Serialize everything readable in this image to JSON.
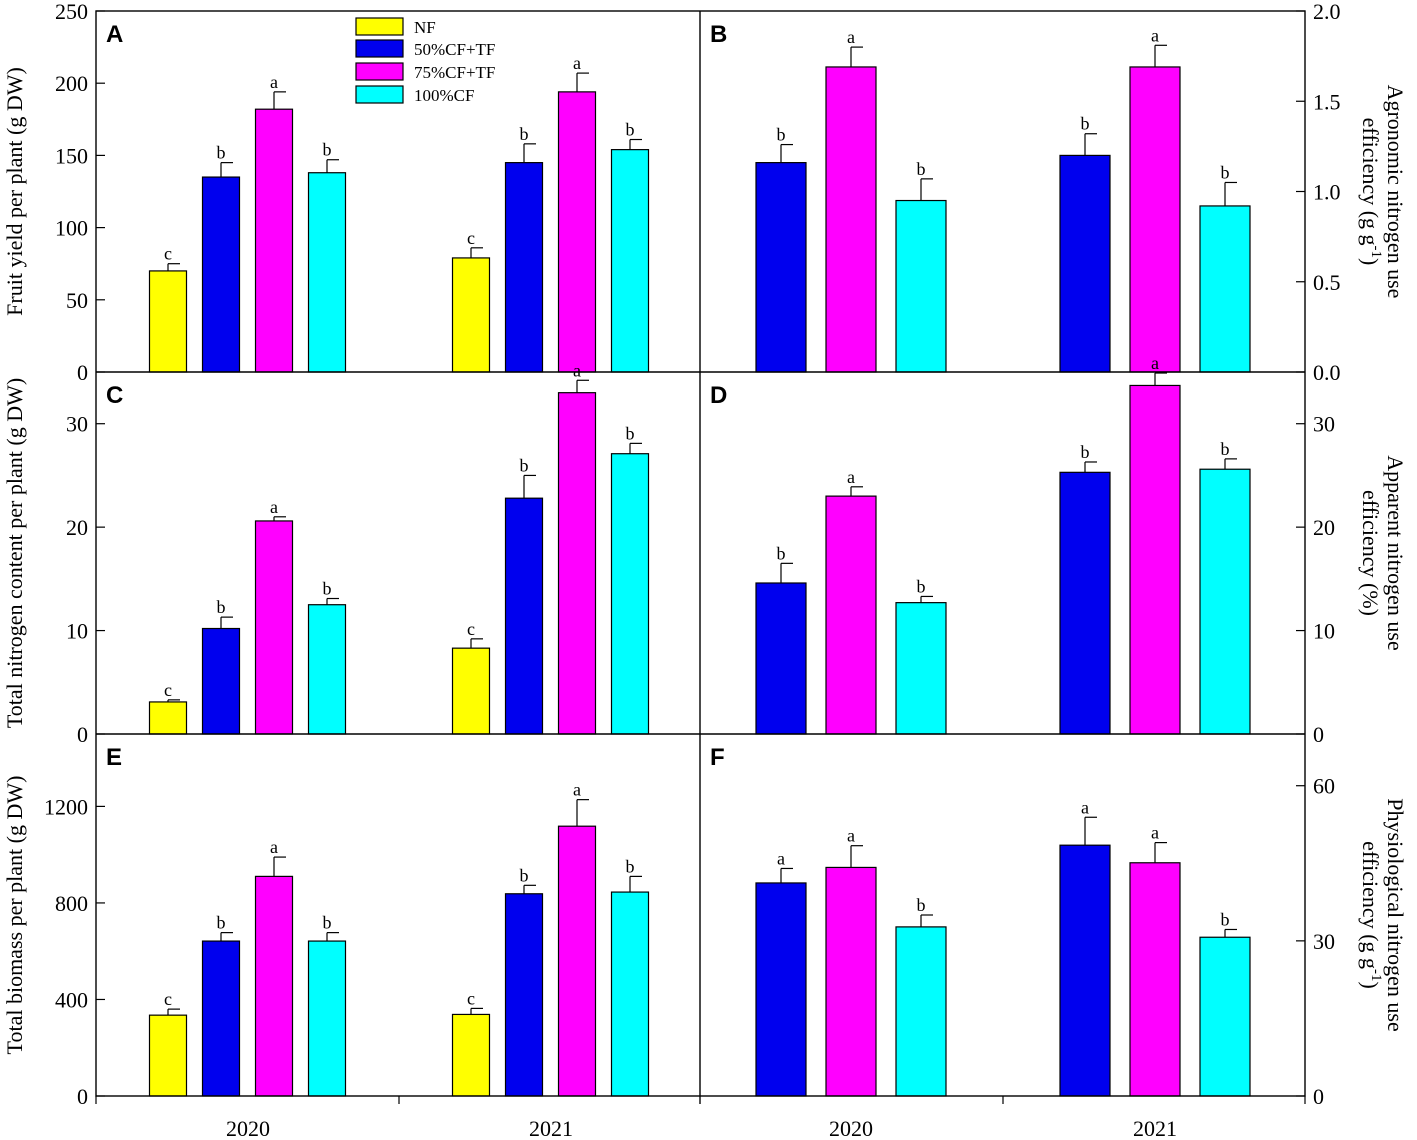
{
  "treatments": [
    "NF",
    "50%CF+TF",
    "75%CF+TF",
    "100%CF"
  ],
  "colors": {
    "NF": "#ffff00",
    "50%CF+TF": "#0000ee",
    "75%CF+TF": "#ff00ff",
    "100%CF": "#00ffff"
  },
  "years": [
    "2020",
    "2021"
  ],
  "chart_data": [
    {
      "panel": "A",
      "type": "bar",
      "ylabel": "Fruit yield per plant (g DW)",
      "ylabel_side": "left",
      "ylim": [
        0,
        250
      ],
      "yticks": [
        0,
        50,
        100,
        150,
        200,
        250
      ],
      "ytick_labels": [
        "0",
        "50",
        "100",
        "150",
        "200",
        "250"
      ],
      "categories": [
        "2020",
        "2021"
      ],
      "series": [
        {
          "name": "NF",
          "values": [
            70,
            79
          ],
          "errors": [
            5,
            7
          ],
          "labels": [
            "c",
            "c"
          ]
        },
        {
          "name": "50%CF+TF",
          "values": [
            135,
            145
          ],
          "errors": [
            10,
            13
          ],
          "labels": [
            "b",
            "b"
          ]
        },
        {
          "name": "75%CF+TF",
          "values": [
            182,
            194
          ],
          "errors": [
            12,
            13
          ],
          "labels": [
            "a",
            "a"
          ]
        },
        {
          "name": "100%CF",
          "values": [
            138,
            154
          ],
          "errors": [
            9,
            7
          ],
          "labels": [
            "b",
            "b"
          ]
        }
      ]
    },
    {
      "panel": "B",
      "type": "bar",
      "ylabel": "Agronomic nitrogen use",
      "ylabel2": "efficiency (g g-1)",
      "ylabel_side": "right",
      "ylim": [
        0,
        2.0
      ],
      "yticks": [
        0,
        0.5,
        1.0,
        1.5,
        2.0
      ],
      "ytick_labels": [
        "0.0",
        "0.5",
        "1.0",
        "1.5",
        "2.0"
      ],
      "categories": [
        "2020",
        "2021"
      ],
      "series": [
        {
          "name": "50%CF+TF",
          "values": [
            1.16,
            1.2
          ],
          "errors": [
            0.1,
            0.12
          ],
          "labels": [
            "b",
            "b"
          ]
        },
        {
          "name": "75%CF+TF",
          "values": [
            1.69,
            1.69
          ],
          "errors": [
            0.11,
            0.12
          ],
          "labels": [
            "a",
            "a"
          ]
        },
        {
          "name": "100%CF",
          "values": [
            0.95,
            0.92
          ],
          "errors": [
            0.12,
            0.13
          ],
          "labels": [
            "b",
            "b"
          ]
        }
      ]
    },
    {
      "panel": "C",
      "type": "bar",
      "ylabel": "Total nitrogen content per plant (g DW)",
      "ylabel_side": "left",
      "ylim": [
        0,
        35
      ],
      "yticks": [
        0,
        10,
        20,
        30
      ],
      "ytick_labels": [
        "0",
        "10",
        "20",
        "30"
      ],
      "categories": [
        "2020",
        "2021"
      ],
      "series": [
        {
          "name": "NF",
          "values": [
            3.1,
            8.3
          ],
          "errors": [
            0.2,
            0.9
          ],
          "labels": [
            "c",
            "c"
          ]
        },
        {
          "name": "50%CF+TF",
          "values": [
            10.2,
            22.8
          ],
          "errors": [
            1.1,
            2.2
          ],
          "labels": [
            "b",
            "b"
          ]
        },
        {
          "name": "75%CF+TF",
          "values": [
            20.6,
            33.0
          ],
          "errors": [
            0.4,
            1.2
          ],
          "labels": [
            "a",
            "a"
          ]
        },
        {
          "name": "100%CF",
          "values": [
            12.5,
            27.1
          ],
          "errors": [
            0.6,
            1.0
          ],
          "labels": [
            "b",
            "b"
          ]
        }
      ]
    },
    {
      "panel": "D",
      "type": "bar",
      "ylabel": "Apparent nitrogen use",
      "ylabel2": "efficiency (%)",
      "ylabel_side": "right",
      "ylim": [
        0,
        35
      ],
      "yticks": [
        0,
        10,
        20,
        30
      ],
      "ytick_labels": [
        "0",
        "10",
        "20",
        "30"
      ],
      "categories": [
        "2020",
        "2021"
      ],
      "series": [
        {
          "name": "50%CF+TF",
          "values": [
            14.6,
            25.3
          ],
          "errors": [
            1.9,
            1.0
          ],
          "labels": [
            "b",
            "b"
          ]
        },
        {
          "name": "75%CF+TF",
          "values": [
            23.0,
            33.7
          ],
          "errors": [
            0.9,
            1.2
          ],
          "labels": [
            "a",
            "a"
          ]
        },
        {
          "name": "100%CF",
          "values": [
            12.7,
            25.6
          ],
          "errors": [
            0.6,
            1.0
          ],
          "labels": [
            "b",
            "b"
          ]
        }
      ]
    },
    {
      "panel": "E",
      "type": "bar",
      "ylabel": "Total biomass per plant (g DW)",
      "ylabel_side": "left",
      "ylim": [
        0,
        1500
      ],
      "yticks": [
        0,
        400,
        800,
        1200
      ],
      "ytick_labels": [
        "0",
        "400",
        "800",
        "1200"
      ],
      "categories": [
        "2020",
        "2021"
      ],
      "series": [
        {
          "name": "NF",
          "values": [
            335,
            338
          ],
          "errors": [
            25,
            25
          ],
          "labels": [
            "c",
            "c"
          ]
        },
        {
          "name": "50%CF+TF",
          "values": [
            642,
            838
          ],
          "errors": [
            35,
            35
          ],
          "labels": [
            "b",
            "b"
          ]
        },
        {
          "name": "75%CF+TF",
          "values": [
            910,
            1118
          ],
          "errors": [
            80,
            110
          ],
          "labels": [
            "a",
            "a"
          ]
        },
        {
          "name": "100%CF",
          "values": [
            642,
            845
          ],
          "errors": [
            35,
            65
          ],
          "labels": [
            "b",
            "b"
          ]
        }
      ]
    },
    {
      "panel": "F",
      "type": "bar",
      "ylabel": "Physiological nitrogen use",
      "ylabel2": "efficiency (g g-1)",
      "ylabel_side": "right",
      "ylim": [
        0,
        70
      ],
      "yticks": [
        0,
        30,
        60
      ],
      "ytick_labels": [
        "0",
        "30",
        "60"
      ],
      "categories": [
        "2020",
        "2021"
      ],
      "series": [
        {
          "name": "50%CF+TF",
          "values": [
            41.2,
            48.5
          ],
          "errors": [
            2.8,
            5.4
          ],
          "labels": [
            "a",
            "a"
          ]
        },
        {
          "name": "75%CF+TF",
          "values": [
            44.2,
            45.1
          ],
          "errors": [
            4.2,
            3.9
          ],
          "labels": [
            "a",
            "a"
          ]
        },
        {
          "name": "100%CF",
          "values": [
            32.7,
            30.7
          ],
          "errors": [
            2.3,
            1.5
          ],
          "labels": [
            "b",
            "b"
          ]
        }
      ]
    }
  ]
}
